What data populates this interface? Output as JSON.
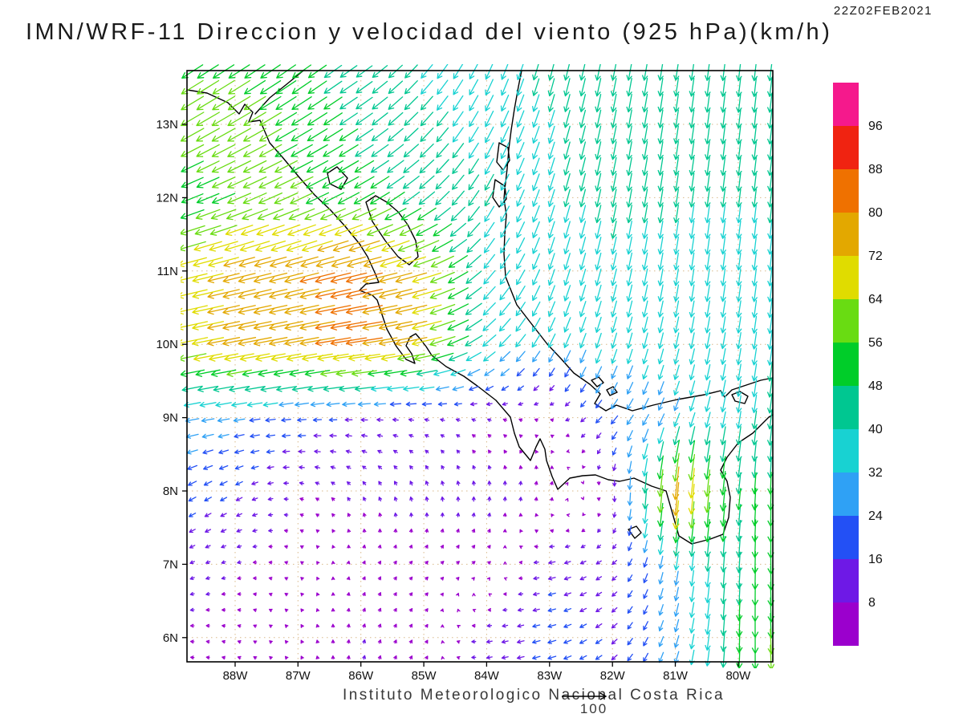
{
  "header": {
    "title": "IMN/WRF-11 Direccion y velocidad del viento (925 hPa)(km/h)",
    "timestamp": "22Z02FEB2021"
  },
  "footer": {
    "caption": "Instituto Meteorologico Nacional Costa Rica",
    "reference_vector_label": "100"
  },
  "colors": {
    "background": "#ffffff",
    "coastline": "#000000",
    "frame": "#000000",
    "gridline": "#d9b98a",
    "axis_text": "#111111"
  },
  "chart_data": {
    "type": "vector_field",
    "title": "IMN/WRF-11 Direccion y velocidad del viento (925 hPa)(km/h)",
    "valid_time": "22Z02FEB2021",
    "model": "IMN/WRF-11",
    "variable": "Direccion y velocidad del viento",
    "level": "925 hPa",
    "units": "km/h",
    "source": "Instituto Meteorologico Nacional Costa Rica",
    "lon_range": [
      -88.765,
      -79.45
    ],
    "lat_range": [
      5.67,
      13.733
    ],
    "x_ticks": [
      {
        "label": "88W",
        "lon": -88
      },
      {
        "label": "87W",
        "lon": -87
      },
      {
        "label": "86W",
        "lon": -86
      },
      {
        "label": "85W",
        "lon": -85
      },
      {
        "label": "84W",
        "lon": -84
      },
      {
        "label": "83W",
        "lon": -83
      },
      {
        "label": "82W",
        "lon": -82
      },
      {
        "label": "81W",
        "lon": -81
      },
      {
        "label": "80W",
        "lon": -80
      }
    ],
    "y_ticks": [
      {
        "label": "13N",
        "lat": 13
      },
      {
        "label": "12N",
        "lat": 12
      },
      {
        "label": "11N",
        "lat": 11
      },
      {
        "label": "10N",
        "lat": 10
      },
      {
        "label": "9N",
        "lat": 9
      },
      {
        "label": "8N",
        "lat": 8
      },
      {
        "label": "7N",
        "lat": 7
      },
      {
        "label": "6N",
        "lat": 6
      }
    ],
    "gridlines": "dotted",
    "reference_vector": 100,
    "colorbar": {
      "levels": [
        8,
        16,
        24,
        32,
        40,
        48,
        56,
        64,
        72,
        80,
        88,
        96
      ],
      "colors": [
        "#9b00cd",
        "#6e19e6",
        "#2350f5",
        "#2fa1f5",
        "#18d2d2",
        "#00c791",
        "#00cd29",
        "#69dc12",
        "#e0dc00",
        "#e3a800",
        "#ef7100",
        "#f02311",
        "#f5198c"
      ]
    },
    "grid": {
      "lats": [
        14,
        13,
        12,
        11,
        10,
        9,
        8,
        7,
        6
      ],
      "lons": [
        -89,
        -88,
        -87,
        -86,
        -85,
        -84,
        -83,
        -82,
        -81,
        -80,
        -79
      ],
      "u": [
        [
          -45,
          -45,
          -40,
          -35,
          -25,
          -15,
          -10,
          -8,
          -6,
          -5,
          -5
        ],
        [
          -52,
          -52,
          -46,
          -38,
          -28,
          -18,
          -12,
          -8,
          -6,
          -5,
          -5
        ],
        [
          -46,
          -52,
          -52,
          -46,
          -35,
          -20,
          -12,
          -8,
          -6,
          -5,
          -4
        ],
        [
          -64,
          -72,
          -76,
          -82,
          -66,
          -25,
          -12,
          -9,
          -6,
          -5,
          -4
        ],
        [
          -66,
          -74,
          -76,
          -82,
          -68,
          -30,
          -15,
          -10,
          -8,
          -6,
          -5
        ],
        [
          -32,
          -25,
          -20,
          -15,
          -10,
          -8,
          -6,
          -15,
          -12,
          -6,
          -5
        ],
        [
          -18,
          -14,
          -8,
          -5,
          -3,
          0,
          3,
          2,
          -8,
          -5,
          2
        ],
        [
          -10,
          -8,
          -5,
          3,
          5,
          6,
          -15,
          -10,
          -5,
          -3,
          4
        ],
        [
          -8,
          -6,
          -3,
          2,
          4,
          -12,
          -18,
          -12,
          -8,
          -2,
          6
        ]
      ],
      "v": [
        [
          -30,
          -30,
          -30,
          -25,
          -30,
          -35,
          -40,
          -40,
          -40,
          -42,
          -42
        ],
        [
          -30,
          -30,
          -28,
          -26,
          -30,
          -35,
          -38,
          -40,
          -40,
          -42,
          -42
        ],
        [
          -18,
          -22,
          -24,
          -25,
          -28,
          -35,
          -38,
          -40,
          -40,
          -40,
          -40
        ],
        [
          -16,
          -18,
          -20,
          -20,
          -20,
          -30,
          -36,
          -38,
          -38,
          -38,
          -40
        ],
        [
          -14,
          -14,
          -14,
          -12,
          -15,
          -25,
          -30,
          -34,
          -35,
          -36,
          -42
        ],
        [
          -6,
          -4,
          -2,
          0,
          2,
          3,
          2,
          -18,
          -28,
          -38,
          -44
        ],
        [
          -10,
          -8,
          2,
          8,
          10,
          10,
          8,
          -10,
          -80,
          -48,
          -52
        ],
        [
          -5,
          -2,
          3,
          6,
          5,
          4,
          -3,
          -8,
          -32,
          -46,
          -58
        ],
        [
          0,
          2,
          5,
          8,
          6,
          -2,
          -5,
          -10,
          -26,
          -50,
          -62
        ]
      ]
    }
  }
}
